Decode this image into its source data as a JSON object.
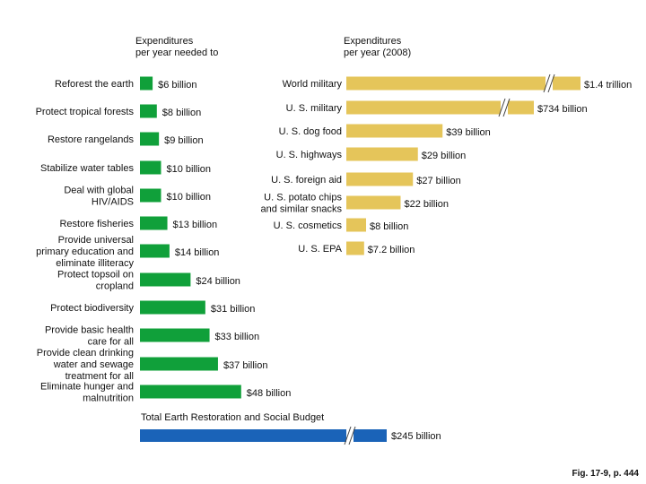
{
  "headers": {
    "left_line1": "Expenditures",
    "left_line2": "per year needed to",
    "right_line1": "Expenditures",
    "right_line2": "per year (2008)"
  },
  "caption": "Fig. 17-9, p. 444",
  "colors": {
    "needed": "#10a03a",
    "actual": "#e5c55a",
    "total": "#1a63b8",
    "break_mark": "#444444"
  },
  "chart_data": [
    {
      "type": "bar",
      "orientation": "horizontal",
      "title": "Expenditures per year needed to",
      "unit": "billion USD",
      "categories": [
        [
          "Reforest the earth"
        ],
        [
          "Protect tropical forests"
        ],
        [
          "Restore rangelands"
        ],
        [
          "Stabilize water tables"
        ],
        [
          "Deal with global",
          "HIV/AIDS"
        ],
        [
          "Restore fisheries"
        ],
        [
          "Provide universal",
          "primary education and",
          "eliminate illiteracy"
        ],
        [
          "Protect topsoil on",
          "cropland"
        ],
        [
          "Protect biodiversity"
        ],
        [
          "Provide basic health",
          "care for all"
        ],
        [
          "Provide clean drinking",
          "water and sewage",
          "treatment for all"
        ],
        [
          "Eliminate hunger and",
          "malnutrition"
        ]
      ],
      "values": [
        6,
        8,
        9,
        10,
        10,
        13,
        14,
        24,
        31,
        33,
        37,
        48
      ],
      "value_labels": [
        "$6 billion",
        "$8 billion",
        "$9 billion",
        "$10 billion",
        "$10 billion",
        "$13 billion",
        "$14 billion",
        "$24 billion",
        "$31 billion",
        "$33 billion",
        "$37 billion",
        "$48 billion"
      ]
    },
    {
      "type": "bar",
      "orientation": "horizontal",
      "title": "Expenditures per year (2008)",
      "unit": "billion USD",
      "categories": [
        [
          "World military"
        ],
        [
          "U. S. military"
        ],
        [
          "U. S. dog food"
        ],
        [
          "U. S. highways"
        ],
        [
          "U. S. foreign aid"
        ],
        [
          "U. S. potato chips",
          "and similar snacks"
        ],
        [
          "U. S. cosmetics"
        ],
        [
          "U. S. EPA"
        ]
      ],
      "values": [
        1400,
        734,
        39,
        29,
        27,
        22,
        8,
        7.2
      ],
      "broken_axis": [
        true,
        true,
        false,
        false,
        false,
        false,
        false,
        false
      ],
      "value_labels": [
        "$1.4 trillion",
        "$734 billion",
        "$39 billion",
        "$29 billion",
        "$27 billion",
        "$22 billion",
        "$8 billion",
        "$7.2 billion"
      ]
    },
    {
      "type": "bar",
      "orientation": "horizontal",
      "title": "Total Earth Restoration and Social Budget",
      "unit": "billion USD",
      "categories": [
        [
          ""
        ]
      ],
      "values": [
        245
      ],
      "broken_axis": [
        true
      ],
      "value_labels": [
        "$245 billion"
      ]
    }
  ]
}
